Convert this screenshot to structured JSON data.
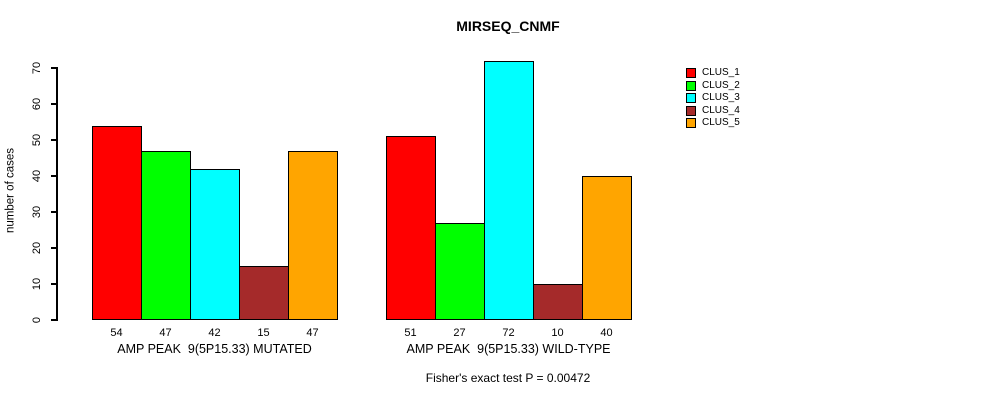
{
  "chart_data": {
    "type": "bar",
    "title": "MIRSEQ_CNMF",
    "ylabel": "number of cases",
    "xlabel": "",
    "ylim": [
      0,
      70
    ],
    "yticks": [
      0,
      10,
      20,
      30,
      40,
      50,
      60,
      70
    ],
    "grid": false,
    "legend_position": "right",
    "categories": [
      "AMP PEAK  9(5P15.33) MUTATED",
      "AMP PEAK  9(5P15.33) WILD-TYPE"
    ],
    "series": [
      {
        "name": "CLUS_1",
        "color": "#FF0000",
        "values": [
          54,
          51
        ]
      },
      {
        "name": "CLUS_2",
        "color": "#00FF00",
        "values": [
          47,
          27
        ]
      },
      {
        "name": "CLUS_3",
        "color": "#00FFFF",
        "values": [
          42,
          72
        ]
      },
      {
        "name": "CLUS_4",
        "color": "#A52A2A",
        "values": [
          15,
          10
        ]
      },
      {
        "name": "CLUS_5",
        "color": "#FFA500",
        "values": [
          47,
          40
        ]
      }
    ],
    "bar_value_labels_shown": true,
    "annotation": "Fisher's exact test P = 0.00472"
  }
}
